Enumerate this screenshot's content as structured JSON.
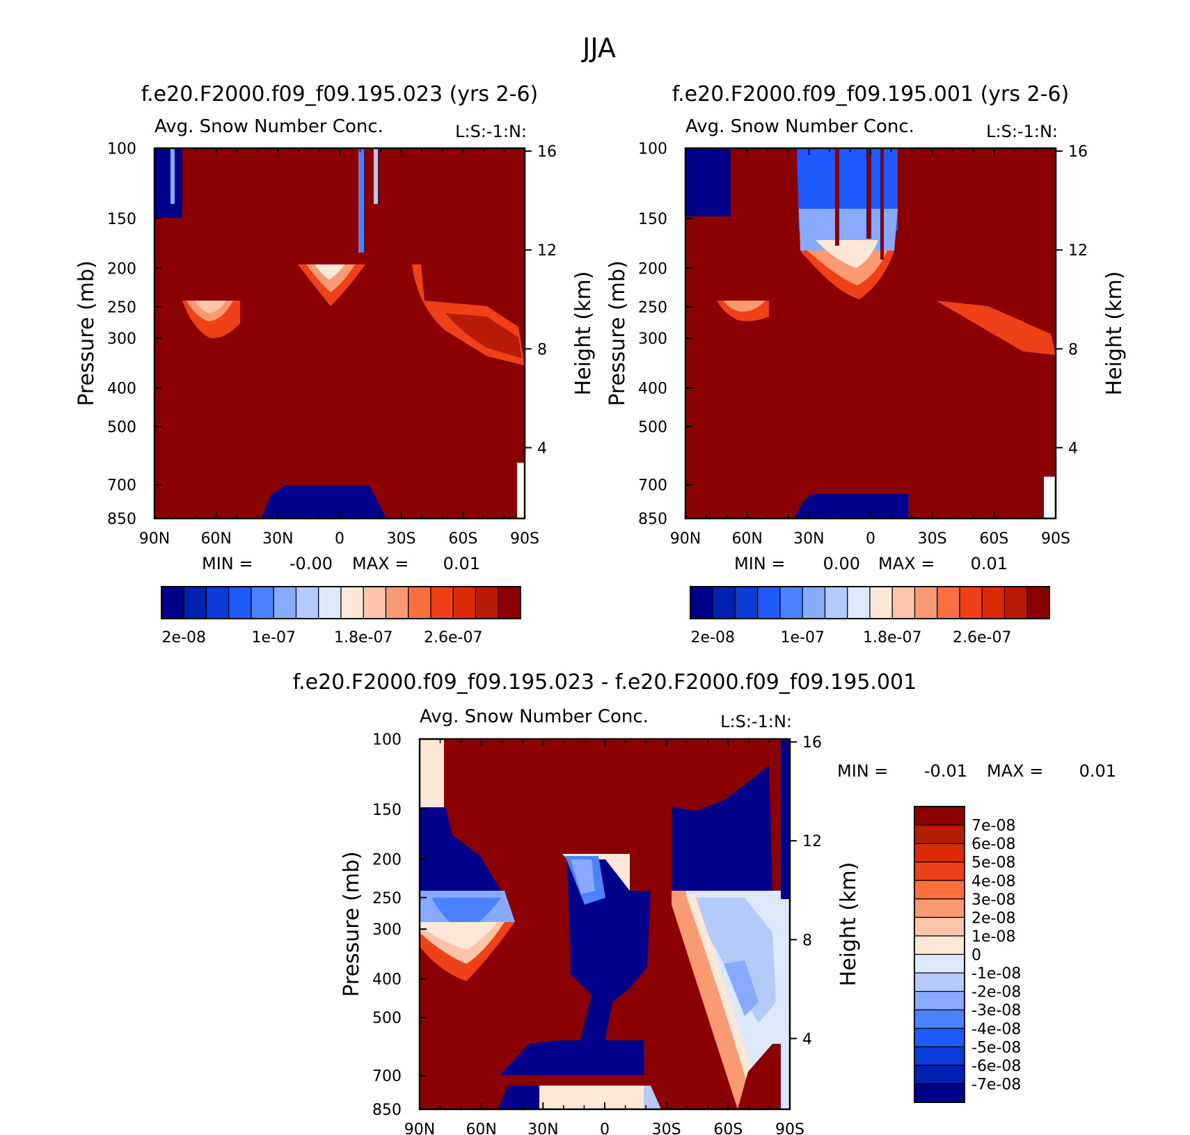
{
  "page_title": "JJA",
  "colors": {
    "pos_dark": "#8b0000",
    "neg_dark": "#00008b",
    "panel_levels": [
      "#00008b",
      "#0022b2",
      "#0a3cd7",
      "#1e5aff",
      "#4b82ff",
      "#87aaff",
      "#b4caf8",
      "#dce9fa",
      "#fde8d8",
      "#fcc4a8",
      "#fa9a72",
      "#f9703e",
      "#f04018",
      "#da2a06",
      "#b91c04",
      "#8b0000"
    ],
    "diff_levels": [
      "#00008b",
      "#0022b2",
      "#0a3cd7",
      "#1e5aff",
      "#4b82ff",
      "#87aaff",
      "#b4caf8",
      "#dce9fa",
      "#fde8d8",
      "#fcc4a8",
      "#fa9a72",
      "#f9703e",
      "#f04018",
      "#da2a06",
      "#b91c04",
      "#8b0000"
    ]
  },
  "axes": {
    "pressure_label": "Pressure (mb)",
    "height_label": "Height (km)",
    "pressure_ticks": [
      "100",
      "150",
      "200",
      "250",
      "300",
      "400",
      "500",
      "700",
      "850"
    ],
    "height_ticks": [
      "16",
      "12",
      "8",
      "4"
    ],
    "lat_ticks": [
      "90N",
      "60N",
      "30N",
      "0",
      "30S",
      "60S",
      "90S"
    ]
  },
  "chart_data": [
    {
      "type": "heatmap",
      "title": "f.e20.F2000.f09_f09.195.023 (yrs 2-6)",
      "subtitle": "Avg. Snow Number Conc.",
      "corner_label": "L:S:-1:N:",
      "xlabel": "",
      "ylabel": "Pressure (mb)",
      "y2label": "Height (km)",
      "x_ticks": [
        "90N",
        "60N",
        "30N",
        "0",
        "30S",
        "60S",
        "90S"
      ],
      "y_ticks": [
        100,
        150,
        200,
        250,
        300,
        400,
        500,
        700,
        850
      ],
      "y2_ticks": [
        16,
        12,
        8,
        4
      ],
      "ylim": [
        850,
        100
      ],
      "y_scale": "log",
      "min_label": "MIN =",
      "min_value": "-0.00",
      "max_label": "MAX =",
      "max_value": "0.01",
      "colorbar_labels": [
        "2e-08",
        "1e-07",
        "1.8e-07",
        "2.6e-07"
      ]
    },
    {
      "type": "heatmap",
      "title": "f.e20.F2000.f09_f09.195.001 (yrs 2-6)",
      "subtitle": "Avg. Snow Number Conc.",
      "corner_label": "L:S:-1:N:",
      "xlabel": "",
      "ylabel": "Pressure (mb)",
      "y2label": "Height (km)",
      "x_ticks": [
        "90N",
        "60N",
        "30N",
        "0",
        "30S",
        "60S",
        "90S"
      ],
      "y_ticks": [
        100,
        150,
        200,
        250,
        300,
        400,
        500,
        700,
        850
      ],
      "y2_ticks": [
        16,
        12,
        8,
        4
      ],
      "ylim": [
        850,
        100
      ],
      "y_scale": "log",
      "min_label": "MIN =",
      "min_value": "0.00",
      "max_label": "MAX =",
      "max_value": "0.01",
      "colorbar_labels": [
        "2e-08",
        "1e-07",
        "1.8e-07",
        "2.6e-07"
      ]
    },
    {
      "type": "heatmap",
      "title": "f.e20.F2000.f09_f09.195.023 - f.e20.F2000.f09_f09.195.001",
      "subtitle": "Avg. Snow Number Conc.",
      "corner_label": "L:S:-1:N:",
      "xlabel": "",
      "ylabel": "Pressure (mb)",
      "y2label": "Height (km)",
      "x_ticks": [
        "90N",
        "60N",
        "30N",
        "0",
        "30S",
        "60S",
        "90S"
      ],
      "y_ticks": [
        100,
        150,
        200,
        250,
        300,
        400,
        500,
        700,
        850
      ],
      "y2_ticks": [
        16,
        12,
        8,
        4
      ],
      "ylim": [
        850,
        100
      ],
      "y_scale": "log",
      "min_label": "MIN =",
      "min_value": "-0.01",
      "max_label": "MAX =",
      "max_value": "0.01",
      "colorbar_labels": [
        "7e-08",
        "6e-08",
        "5e-08",
        "4e-08",
        "3e-08",
        "2e-08",
        "1e-08",
        "0",
        "-1e-08",
        "-2e-08",
        "-3e-08",
        "-4e-08",
        "-5e-08",
        "-6e-08",
        "-7e-08"
      ]
    }
  ]
}
